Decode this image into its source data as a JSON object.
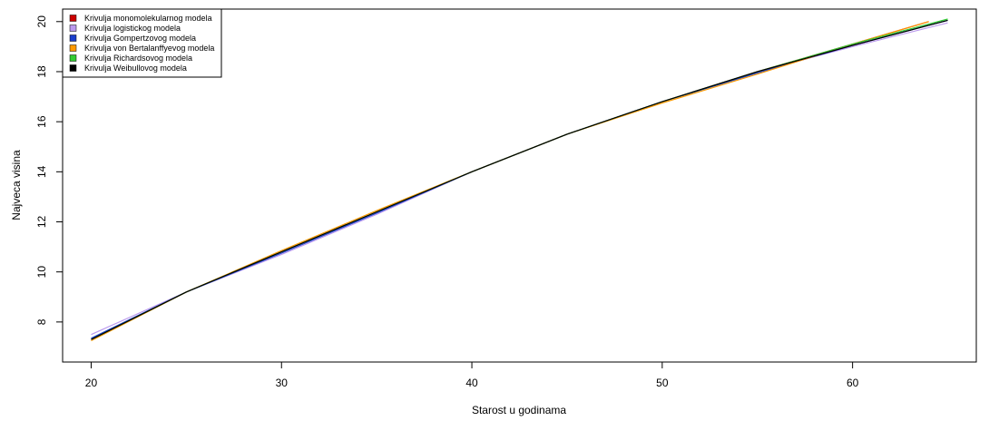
{
  "chart_data": {
    "type": "line",
    "title": "",
    "xlabel": "Starost u godinama",
    "ylabel": "Najveca visina",
    "xlim": [
      18.5,
      66.5
    ],
    "ylim": [
      6.4,
      20.5
    ],
    "xticks": [
      20,
      30,
      40,
      50,
      60
    ],
    "yticks": [
      8,
      10,
      12,
      14,
      16,
      18,
      20
    ],
    "grid": false,
    "legend_position": "top-left",
    "series": [
      {
        "name": "Krivulja monomolekularnog modela",
        "color": "#cc0000",
        "x": [
          20,
          25,
          30,
          35,
          40,
          45,
          50,
          55,
          60,
          64
        ],
        "y": [
          7.3,
          9.2,
          10.8,
          12.4,
          14.0,
          15.5,
          16.8,
          18.0,
          19.1,
          20.0
        ]
      },
      {
        "name": "Krivulja logistickog modela",
        "color": "#bb99ee",
        "x": [
          20,
          25,
          30,
          35,
          40,
          45,
          50,
          55,
          60,
          65
        ],
        "y": [
          7.5,
          9.2,
          10.7,
          12.3,
          14.0,
          15.5,
          16.8,
          18.0,
          19.0,
          19.95
        ]
      },
      {
        "name": "Krivulja Gompertzovog modela",
        "color": "#1a3fcc",
        "x": [
          20,
          25,
          30,
          35,
          40,
          45,
          50,
          55,
          60,
          65
        ],
        "y": [
          7.35,
          9.2,
          10.75,
          12.35,
          14.0,
          15.5,
          16.8,
          17.95,
          19.05,
          20.05
        ]
      },
      {
        "name": "Krivulja von Bertalanffyevog modela",
        "color": "#ff9900",
        "x": [
          20,
          25,
          30,
          35,
          40,
          45,
          50,
          55,
          60,
          64
        ],
        "y": [
          7.25,
          9.2,
          10.85,
          12.45,
          14.0,
          15.5,
          16.75,
          17.9,
          19.1,
          20.0
        ]
      },
      {
        "name": "Krivulja Richardsovog modela",
        "color": "#33cc33",
        "x": [
          20,
          25,
          30,
          35,
          40,
          45,
          50,
          55,
          60,
          65
        ],
        "y": [
          7.3,
          9.2,
          10.8,
          12.4,
          14.0,
          15.5,
          16.8,
          18.0,
          19.1,
          20.1
        ]
      },
      {
        "name": "Krivulja Weibullovog modela",
        "color": "#000000",
        "x": [
          20,
          25,
          30,
          35,
          40,
          45,
          50,
          55,
          60,
          65
        ],
        "y": [
          7.3,
          9.2,
          10.8,
          12.4,
          14.0,
          15.5,
          16.8,
          18.0,
          19.05,
          20.05
        ]
      }
    ]
  }
}
